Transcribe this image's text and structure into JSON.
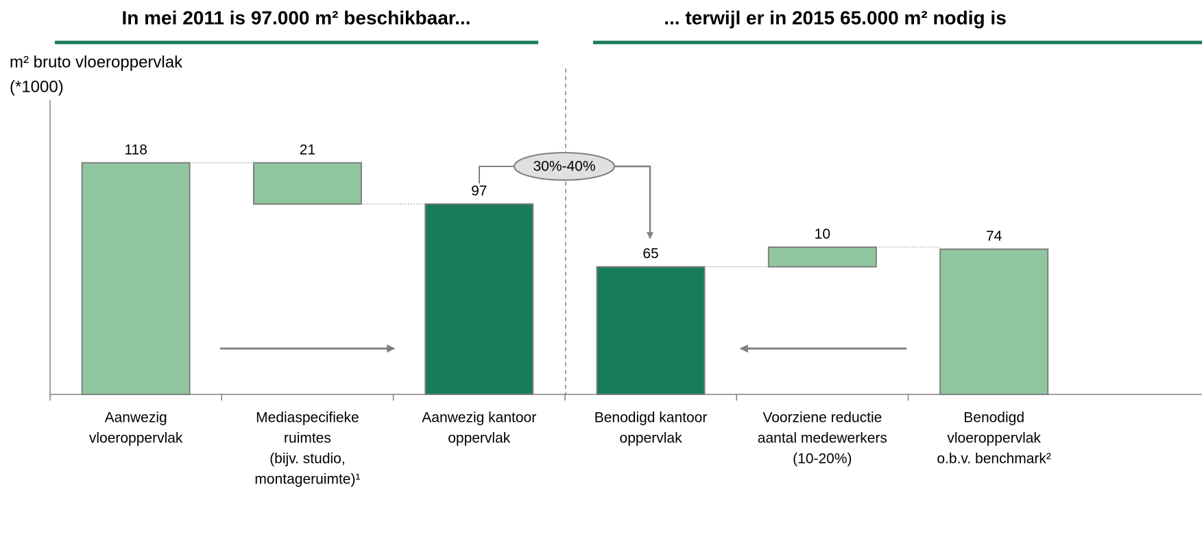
{
  "chart_data": {
    "type": "waterfall",
    "titles": [
      "In mei 2011 is 97.000 m² beschikbaar...",
      "... terwijl er in 2015 65.000 m² nodig is"
    ],
    "y_label": [
      "m² bruto vloeroppervlak",
      "(*1000)"
    ],
    "categories": [
      [
        "Aanwezig",
        "vloeroppervlak"
      ],
      [
        "Mediaspecifieke",
        "ruimtes",
        "(bijv. studio,",
        "montageruimte)¹"
      ],
      [
        "Aanwezig kantoor",
        "oppervlak"
      ],
      [
        "Benodigd kantoor",
        "oppervlak"
      ],
      [
        "Voorziene reductie",
        "aantal medewerkers",
        "(10-20%)"
      ],
      [
        "Benodigd",
        "vloeroppervlak",
        "o.b.v. benchmark²"
      ]
    ],
    "values": [
      118,
      21,
      97,
      65,
      10,
      74
    ],
    "measures": [
      "absolute",
      "decrease",
      "absolute",
      "absolute",
      "increase",
      "absolute"
    ],
    "colors": [
      "#8fc69f",
      "#8fc69f",
      "#187b5a",
      "#187b5a",
      "#8fc69f",
      "#8fc69f"
    ],
    "annotation": "30%-40%",
    "ylim": [
      0,
      150
    ]
  }
}
